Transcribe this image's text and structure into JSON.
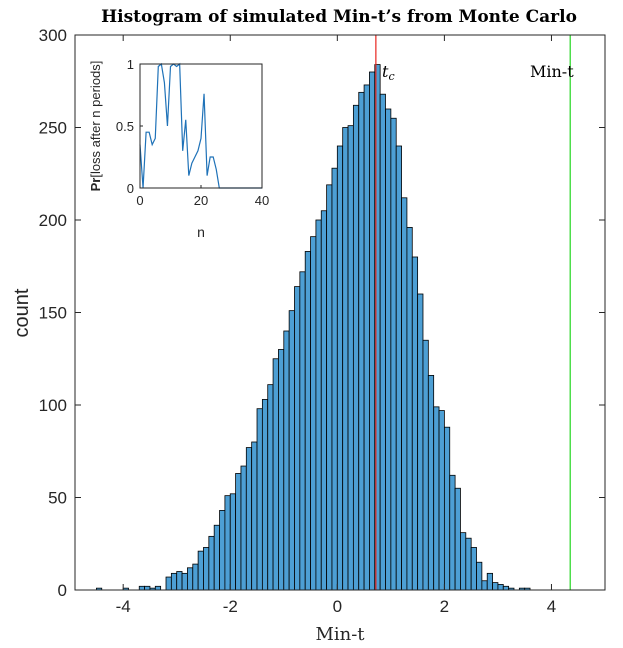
{
  "chart_data": [
    {
      "type": "bar",
      "title": "Histogram of simulated Min-t’s from Monte Carlo",
      "xlabel": "Min-t",
      "ylabel": "count",
      "xlim": [
        -4.9,
        5.0
      ],
      "ylim": [
        0,
        300
      ],
      "xticks": [
        -4,
        -2,
        0,
        2,
        4
      ],
      "yticks": [
        0,
        50,
        100,
        150,
        200,
        250,
        300
      ],
      "grid": false,
      "bin_edges_start": -4.5,
      "bin_width": 0.1,
      "values": [
        1,
        0,
        0,
        0,
        0,
        1,
        0,
        0,
        2,
        2,
        1,
        2,
        0,
        7,
        9,
        10,
        9,
        12,
        14,
        21,
        23,
        29,
        35,
        43,
        51,
        52,
        63,
        67,
        77,
        80,
        98,
        103,
        111,
        125,
        130,
        140,
        151,
        164,
        172,
        183,
        191,
        200,
        205,
        219,
        228,
        240,
        250,
        251,
        262,
        269,
        273,
        280,
        284,
        268,
        260,
        255,
        240,
        212,
        196,
        180,
        160,
        135,
        116,
        99,
        97,
        88,
        62,
        55,
        31,
        28,
        23,
        15,
        5,
        9,
        4,
        3,
        2,
        1,
        0,
        1,
        1
      ],
      "vlines": [
        {
          "x": 0.72,
          "label": "t_c",
          "color": "#e8251f"
        },
        {
          "x": 4.35,
          "label": "Min-t",
          "color": "#22d61f"
        }
      ],
      "bar_color": "#4d9fd4"
    },
    {
      "type": "line",
      "title": "",
      "xlabel": "n",
      "ylabel": "Pr[loss after n periods]",
      "xlim": [
        0,
        40
      ],
      "ylim": [
        0,
        1
      ],
      "xticks": [
        0,
        20,
        40
      ],
      "yticks": [
        0,
        0.5,
        1
      ],
      "grid": false,
      "x": [
        0,
        1,
        2,
        3,
        4,
        5,
        6,
        7,
        8,
        9,
        10,
        11,
        12,
        13,
        14,
        15,
        16,
        17,
        18,
        19,
        20,
        21,
        22,
        23,
        24,
        25,
        26,
        27,
        28,
        29,
        30,
        31,
        32,
        33,
        34,
        35,
        36,
        37,
        38,
        39,
        40
      ],
      "y": [
        0.35,
        0.0,
        0.45,
        0.45,
        0.35,
        0.4,
        0.98,
        1.0,
        0.85,
        0.5,
        0.98,
        1.0,
        0.98,
        1.0,
        0.3,
        0.55,
        0.1,
        0.2,
        0.25,
        0.3,
        0.4,
        0.76,
        0.1,
        0.25,
        0.25,
        0.15,
        0,
        0,
        0,
        0,
        0,
        0,
        0,
        0,
        0,
        0,
        0,
        0,
        0,
        0,
        0
      ],
      "color": "#1f72b8"
    }
  ]
}
